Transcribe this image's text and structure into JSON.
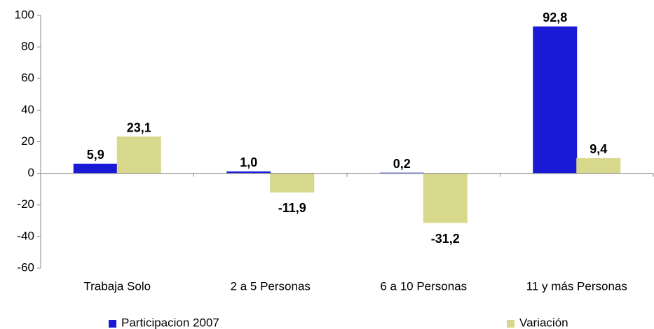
{
  "chart_data": {
    "type": "bar",
    "categories": [
      "Trabaja Solo",
      "2 a 5 Personas",
      "6 a 10 Personas",
      "11 y más Personas"
    ],
    "series": [
      {
        "name": "Participacion 2007",
        "color": "#1a1ad6",
        "label_color": "#1a1a80",
        "values": [
          5.9,
          1.0,
          0.2,
          92.8
        ],
        "value_labels": [
          "5,9",
          "1,0",
          "0,2",
          "92,8"
        ]
      },
      {
        "name": "Variación",
        "color": "#d8d88c",
        "label_color": "#000000",
        "values": [
          23.1,
          -11.9,
          -31.2,
          9.4
        ],
        "value_labels": [
          "23,1",
          "-11,9",
          "-31,2",
          "9,4"
        ]
      }
    ],
    "ylim": [
      -60,
      100
    ],
    "yticks": [
      -60,
      -40,
      -20,
      0,
      20,
      40,
      60,
      80,
      100
    ],
    "grid": false,
    "legend": "bottom"
  }
}
